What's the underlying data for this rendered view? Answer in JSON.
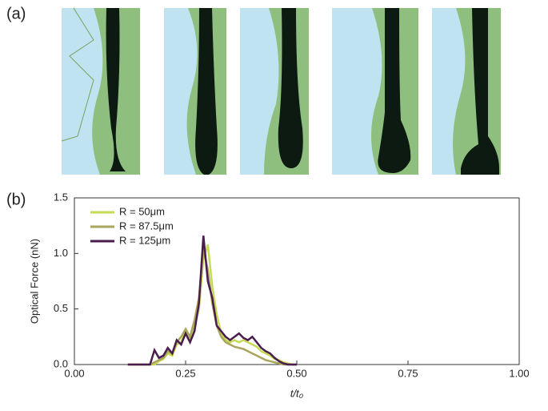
{
  "panel_a": {
    "label": "(a)"
  },
  "panel_b": {
    "label": "(b)"
  },
  "chart_data": {
    "type": "line",
    "xlabel": "t/t₀",
    "ylabel": "Optical Force (nN)",
    "x": [
      0.12,
      0.13,
      0.14,
      0.15,
      0.16,
      0.17,
      0.18,
      0.19,
      0.2,
      0.21,
      0.22,
      0.23,
      0.24,
      0.25,
      0.26,
      0.27,
      0.28,
      0.29,
      0.3,
      0.31,
      0.32,
      0.33,
      0.34,
      0.35,
      0.36,
      0.37,
      0.38,
      0.39,
      0.4,
      0.41,
      0.42,
      0.43,
      0.44,
      0.45,
      0.46,
      0.47,
      0.48,
      0.49,
      0.5
    ],
    "series": [
      {
        "name": "R = 50μm",
        "color": "#c5da55",
        "values": [
          0,
          0,
          0,
          0,
          0,
          0,
          0,
          0.03,
          0.05,
          0.1,
          0.08,
          0.18,
          0.2,
          0.3,
          0.22,
          0.35,
          0.5,
          0.95,
          1.08,
          0.7,
          0.45,
          0.28,
          0.22,
          0.2,
          0.22,
          0.2,
          0.22,
          0.2,
          0.18,
          0.16,
          0.12,
          0.1,
          0.08,
          0.05,
          0.04,
          0.02,
          0.01,
          0,
          0
        ]
      },
      {
        "name": "R = 87.5μm",
        "color": "#a8a65c",
        "values": [
          0,
          0,
          0,
          0,
          0,
          0,
          0.02,
          0.04,
          0.06,
          0.12,
          0.1,
          0.2,
          0.25,
          0.32,
          0.25,
          0.4,
          0.6,
          1.05,
          0.85,
          0.55,
          0.35,
          0.25,
          0.2,
          0.18,
          0.16,
          0.15,
          0.14,
          0.12,
          0.1,
          0.08,
          0.06,
          0.04,
          0.03,
          0.02,
          0.01,
          0,
          0,
          0,
          0
        ]
      },
      {
        "name": "R = 125μm",
        "color": "#4a1d4e",
        "values": [
          0,
          0,
          0,
          0,
          0,
          0,
          0.13,
          0.06,
          0.08,
          0.15,
          0.1,
          0.22,
          0.18,
          0.28,
          0.2,
          0.3,
          0.55,
          1.16,
          0.75,
          0.6,
          0.35,
          0.3,
          0.25,
          0.22,
          0.25,
          0.28,
          0.24,
          0.22,
          0.25,
          0.2,
          0.15,
          0.12,
          0.1,
          0.06,
          0.03,
          0.01,
          0,
          0,
          0
        ]
      }
    ],
    "xlim": [
      0,
      1
    ],
    "xticks": [
      {
        "value": 0,
        "label": "0.00"
      },
      {
        "value": 0.25,
        "label": "0.25"
      },
      {
        "value": 0.5,
        "label": "0.50"
      },
      {
        "value": 0.75,
        "label": "0.75"
      },
      {
        "value": 1,
        "label": "1.00"
      }
    ],
    "ylim": [
      0,
      1.5
    ],
    "yticks": [
      {
        "value": 0,
        "label": "0.0"
      },
      {
        "value": 0.5,
        "label": "0.5"
      },
      {
        "value": 1,
        "label": "1.0"
      },
      {
        "value": 1.5,
        "label": "1.5"
      }
    ],
    "legend": "upper left"
  }
}
